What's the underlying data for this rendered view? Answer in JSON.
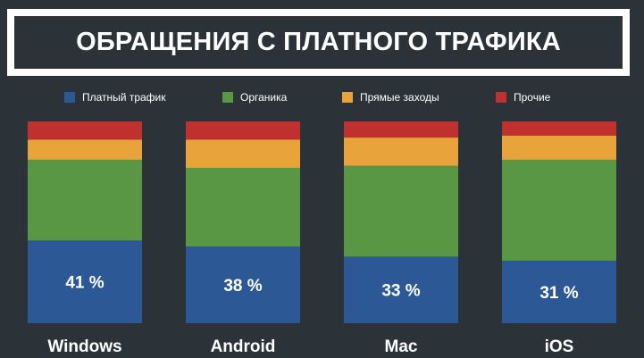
{
  "title": "ОБРАЩЕНИЯ С ПЛАТНОГО ТРАФИКА",
  "chart_data": {
    "type": "bar",
    "stacked": true,
    "normalized": true,
    "categories": [
      "Windows",
      "Android",
      "Mac",
      "iOS"
    ],
    "value_labels": [
      "41 %",
      "38 %",
      "33 %",
      "31 %"
    ],
    "series": [
      {
        "name": "Платный трафик",
        "color": "#2c5896",
        "values": [
          41,
          38,
          33,
          31
        ]
      },
      {
        "name": "Органика",
        "color": "#5a9744",
        "values": [
          40,
          39,
          45,
          50
        ]
      },
      {
        "name": "Прямые заходы",
        "color": "#e8a43a",
        "values": [
          10,
          14,
          14,
          12
        ]
      },
      {
        "name": "Прочие",
        "color": "#c0302f",
        "values": [
          9,
          9,
          8,
          7
        ]
      }
    ],
    "ylim": [
      0,
      100
    ],
    "grid": false,
    "legend_position": "top"
  }
}
